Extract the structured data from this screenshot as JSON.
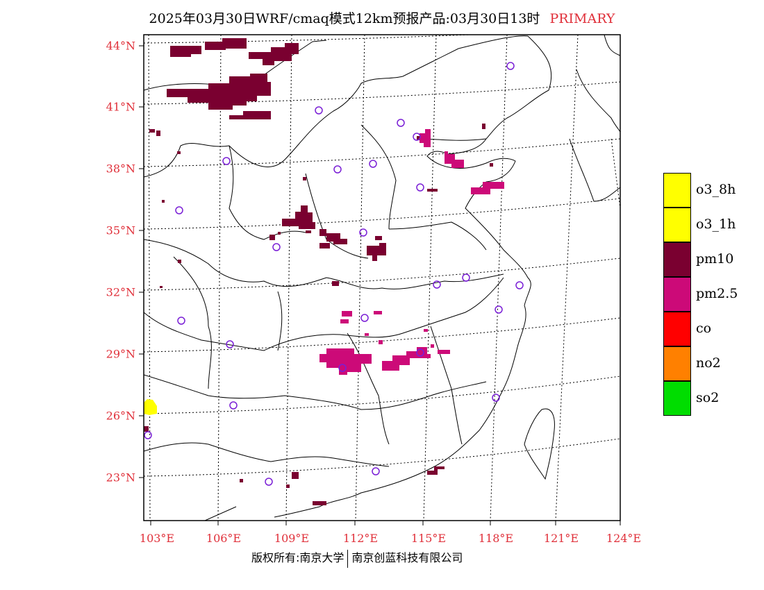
{
  "title": {
    "main": "2025年03月30日WRF/cmaq模式12km预报产品:03月30日13时",
    "tag": "PRIMARY"
  },
  "colors": {
    "label": "#e0303a",
    "pm10": "#7a0030",
    "pm25": "#cc0a78",
    "o3": "#ffff00",
    "station": "#7a1fd6"
  },
  "lat_labels": [
    "44°N",
    "41°N",
    "38°N",
    "35°N",
    "32°N",
    "29°N",
    "26°N",
    "23°N"
  ],
  "lon_labels": [
    "103°E",
    "106°E",
    "109°E",
    "112°E",
    "115°E",
    "118°E",
    "121°E",
    "124°E"
  ],
  "legend": [
    {
      "label": "o3_8h",
      "color": "#ffff00"
    },
    {
      "label": "o3_1h",
      "color": "#ffff00"
    },
    {
      "label": "pm10",
      "color": "#7a0030"
    },
    {
      "label": "pm2.5",
      "color": "#cc0a78"
    },
    {
      "label": "co",
      "color": "#ff0000"
    },
    {
      "label": "no2",
      "color": "#ff8000"
    },
    {
      "label": "so2",
      "color": "#00dd00"
    }
  ],
  "footer": {
    "left": "版权所有:南京大学",
    "right": "南京创蓝科技有限公司"
  }
}
